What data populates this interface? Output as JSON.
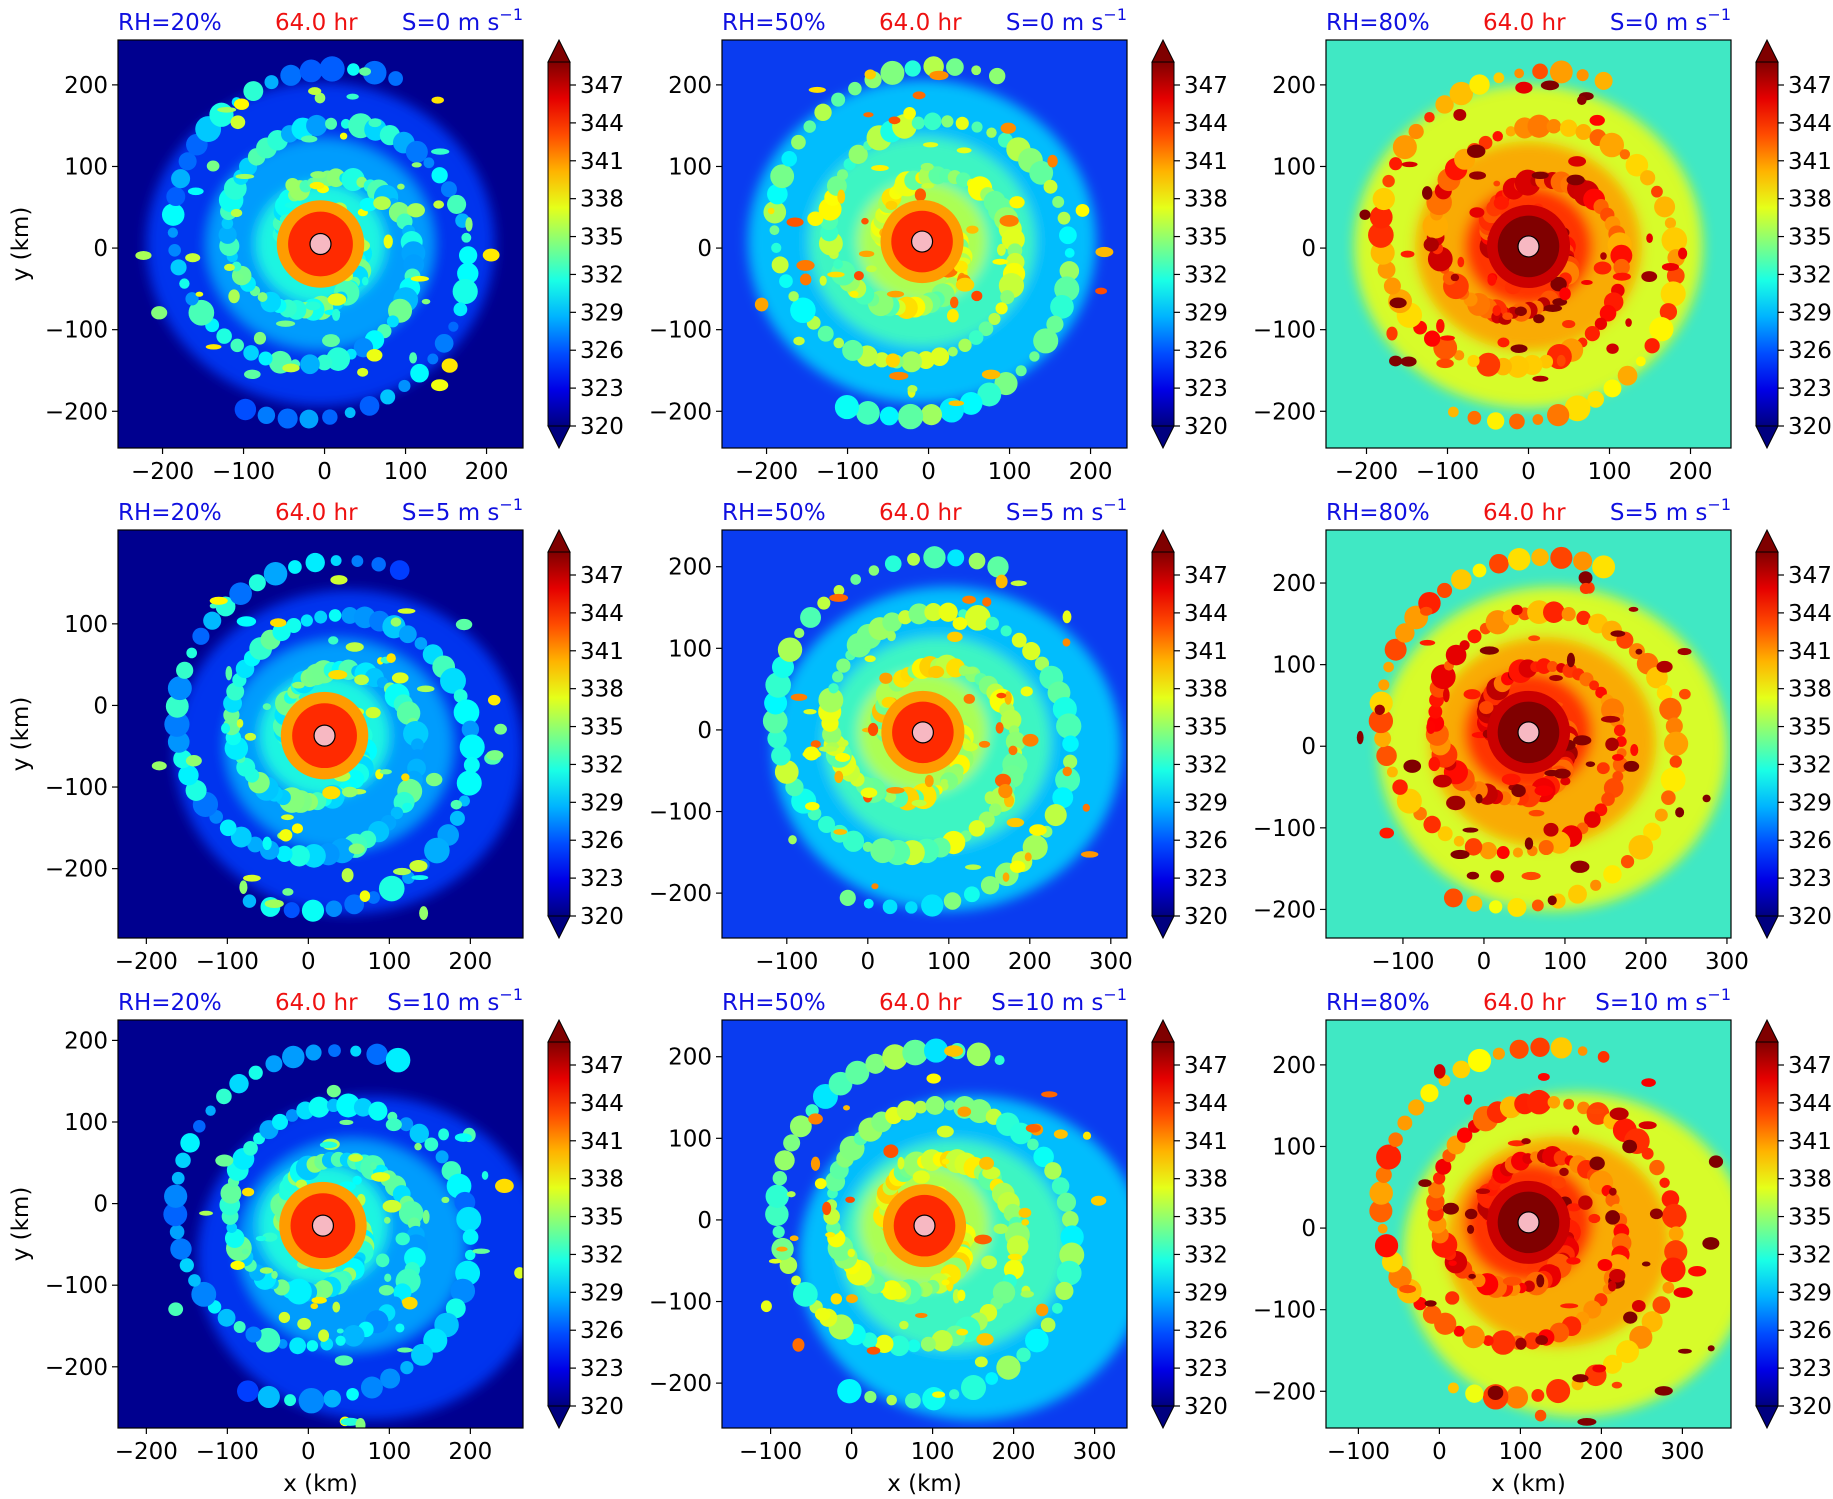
{
  "figure": {
    "colors": {
      "rh_label": "#1010e0",
      "time_label": "#ee1111",
      "shear_label": "#1010e0",
      "center_marker": "#f7b8c2"
    },
    "colormap": "jet",
    "colorbar_ticks": [
      "347",
      "344",
      "341",
      "338",
      "335",
      "332",
      "329",
      "326",
      "323",
      "320"
    ],
    "xlabel": "x (km)",
    "ylabel": "y (km)"
  },
  "panels": [
    {
      "rh": "RH=20%",
      "time": "64.0 hr",
      "shear": "S=0 m s",
      "shear_exp": "−1",
      "bg": "#00008f",
      "xticks": [
        "−200",
        "−100",
        "0",
        "100",
        "200"
      ],
      "yticks": [
        "200",
        "100",
        "0",
        "−100",
        "−200"
      ]
    },
    {
      "rh": "RH=50%",
      "time": "64.0 hr",
      "shear": "S=0 m s",
      "shear_exp": "−1",
      "bg": "#0a3cf0",
      "xticks": [
        "−200",
        "−100",
        "0",
        "100",
        "200"
      ],
      "yticks": [
        "200",
        "100",
        "0",
        "−100",
        "−200"
      ]
    },
    {
      "rh": "RH=80%",
      "time": "64.0 hr",
      "shear": "S=0 m s",
      "shear_exp": "−1",
      "bg": "#40e8c4",
      "xticks": [
        "−200",
        "−100",
        "0",
        "100",
        "200"
      ],
      "yticks": [
        "200",
        "100",
        "0",
        "−100",
        "−200"
      ]
    },
    {
      "rh": "RH=20%",
      "time": "64.0 hr",
      "shear": "S=5 m s",
      "shear_exp": "−1",
      "bg": "#00008f",
      "xticks": [
        "−200",
        "−100",
        "0",
        "100",
        "200"
      ],
      "yticks": [
        "100",
        "0",
        "−100",
        "−200"
      ]
    },
    {
      "rh": "RH=50%",
      "time": "64.0 hr",
      "shear": "S=5 m s",
      "shear_exp": "−1",
      "bg": "#0a3cf0",
      "xticks": [
        "−100",
        "0",
        "100",
        "200",
        "300"
      ],
      "yticks": [
        "200",
        "100",
        "0",
        "−100",
        "−200"
      ]
    },
    {
      "rh": "RH=80%",
      "time": "64.0 hr",
      "shear": "S=5 m s",
      "shear_exp": "−1",
      "bg": "#40e8c4",
      "xticks": [
        "−100",
        "0",
        "100",
        "200",
        "300"
      ],
      "yticks": [
        "200",
        "100",
        "0",
        "−100",
        "−200"
      ]
    },
    {
      "rh": "RH=20%",
      "time": "64.0 hr",
      "shear": "S=10 m s",
      "shear_exp": "−1",
      "bg": "#00008f",
      "xticks": [
        "−200",
        "−100",
        "0",
        "100",
        "200"
      ],
      "yticks": [
        "200",
        "100",
        "0",
        "−100",
        "−200"
      ]
    },
    {
      "rh": "RH=50%",
      "time": "64.0 hr",
      "shear": "S=10 m s",
      "shear_exp": "−1",
      "bg": "#0a3cf0",
      "xticks": [
        "−100",
        "0",
        "100",
        "200",
        "300"
      ],
      "yticks": [
        "200",
        "100",
        "0",
        "−100",
        "−200"
      ]
    },
    {
      "rh": "RH=80%",
      "time": "64.0 hr",
      "shear": "S=10 m s",
      "shear_exp": "−1",
      "bg": "#40e8c4",
      "xticks": [
        "−100",
        "0",
        "100",
        "200",
        "300"
      ],
      "yticks": [
        "200",
        "100",
        "0",
        "−100",
        "−200"
      ]
    }
  ],
  "chart_data": {
    "type": "heatmap",
    "colorbar": {
      "min": 320,
      "max": 347,
      "extend": "both",
      "ticks": [
        347,
        344,
        341,
        338,
        335,
        332,
        329,
        326,
        323,
        320
      ]
    },
    "panels": [
      {
        "rh_percent": 20,
        "shear_m_s": 0,
        "time_hr": 64.0,
        "xlim": [
          -255,
          245
        ],
        "ylim": [
          -245,
          255
        ],
        "center_km": [
          -5,
          5
        ]
      },
      {
        "rh_percent": 50,
        "shear_m_s": 0,
        "time_hr": 64.0,
        "xlim": [
          -255,
          245
        ],
        "ylim": [
          -245,
          255
        ],
        "center_km": [
          -8,
          8
        ]
      },
      {
        "rh_percent": 80,
        "shear_m_s": 0,
        "time_hr": 64.0,
        "xlim": [
          -250,
          250
        ],
        "ylim": [
          -245,
          255
        ],
        "center_km": [
          0,
          2
        ]
      },
      {
        "rh_percent": 20,
        "shear_m_s": 5,
        "time_hr": 64.0,
        "xlim": [
          -235,
          265
        ],
        "ylim": [
          -285,
          215
        ],
        "center_km": [
          20,
          -37
        ]
      },
      {
        "rh_percent": 50,
        "shear_m_s": 5,
        "time_hr": 64.0,
        "xlim": [
          -180,
          320
        ],
        "ylim": [
          -255,
          245
        ],
        "center_km": [
          68,
          -3
        ]
      },
      {
        "rh_percent": 80,
        "shear_m_s": 5,
        "time_hr": 64.0,
        "xlim": [
          -195,
          305
        ],
        "ylim": [
          -235,
          265
        ],
        "center_km": [
          55,
          17
        ]
      },
      {
        "rh_percent": 20,
        "shear_m_s": 10,
        "time_hr": 64.0,
        "xlim": [
          -235,
          265
        ],
        "ylim": [
          -275,
          225
        ],
        "center_km": [
          18,
          -27
        ]
      },
      {
        "rh_percent": 50,
        "shear_m_s": 10,
        "time_hr": 64.0,
        "xlim": [
          -160,
          340
        ],
        "ylim": [
          -255,
          245
        ],
        "center_km": [
          90,
          -7
        ]
      },
      {
        "rh_percent": 80,
        "shear_m_s": 10,
        "time_hr": 64.0,
        "xlim": [
          -140,
          360
        ],
        "ylim": [
          -245,
          255
        ],
        "center_km": [
          110,
          7
        ]
      }
    ]
  }
}
